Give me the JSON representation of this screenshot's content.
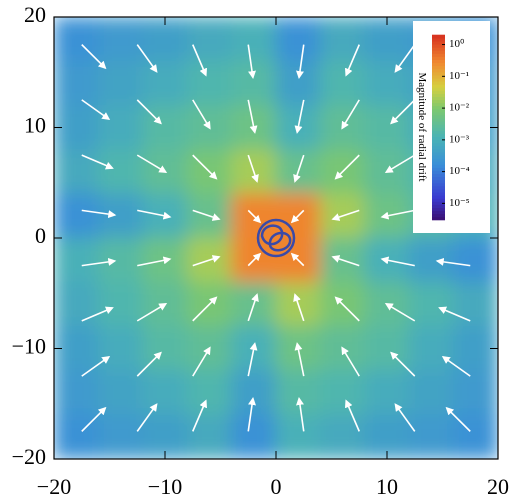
{
  "chart_data": {
    "type": "heatmap",
    "xlim": [
      -20,
      20
    ],
    "ylim": [
      -20,
      20
    ],
    "xticks": [
      {
        "value": -20,
        "label": "−20"
      },
      {
        "value": -10,
        "label": "−10"
      },
      0,
      10,
      20
    ],
    "yticks": [
      {
        "value": -20,
        "label": "−20"
      },
      {
        "value": -10,
        "label": "−10"
      },
      0,
      10,
      20
    ],
    "colorbar_label": "Magnitude of radial drift",
    "color_scale": "log",
    "clim": [
      3e-06,
      2
    ],
    "colorbar_ticks": [
      {
        "value": 1,
        "label": "10⁰"
      },
      {
        "value": 0.1,
        "label": "10⁻¹"
      },
      {
        "value": 0.01,
        "label": "10⁻²"
      },
      {
        "value": 0.001,
        "label": "10⁻³"
      },
      {
        "value": 0.0001,
        "label": "10⁻⁴"
      },
      {
        "value": 1e-05,
        "label": "10⁻⁵"
      }
    ],
    "heatmap": {
      "x": [
        -18,
        -14,
        -10,
        -6,
        -2,
        2,
        6,
        10,
        14,
        18
      ],
      "y": [
        18,
        14,
        10,
        6,
        2,
        -2,
        -6,
        -10,
        -14,
        -18
      ],
      "z": [
        [
          0.0002,
          0.0003,
          0.0004,
          0.0007,
          0.001,
          0.0002,
          0.0007,
          0.0004,
          0.0003,
          0.0002
        ],
        [
          0.0003,
          0.0005,
          0.0008,
          0.0015,
          0.002,
          0.0004,
          0.0015,
          0.0008,
          0.0005,
          0.0003
        ],
        [
          0.0004,
          0.0008,
          0.002,
          0.003,
          0.005,
          0.001,
          0.003,
          0.002,
          0.0008,
          0.0004
        ],
        [
          0.0007,
          0.0015,
          0.003,
          0.008,
          0.02,
          0.004,
          0.008,
          0.003,
          0.0015,
          0.0007
        ],
        [
          0.0002,
          0.0004,
          0.001,
          0.004,
          0.3,
          0.3,
          0.02,
          0.005,
          0.002,
          0.001
        ],
        [
          0.001,
          0.002,
          0.005,
          0.02,
          0.3,
          0.3,
          0.004,
          0.001,
          0.0004,
          0.0002
        ],
        [
          0.0007,
          0.0015,
          0.003,
          0.008,
          0.004,
          0.02,
          0.008,
          0.003,
          0.0015,
          0.0007
        ],
        [
          0.0004,
          0.0008,
          0.002,
          0.003,
          0.001,
          0.005,
          0.003,
          0.002,
          0.0008,
          0.0004
        ],
        [
          0.0003,
          0.0005,
          0.0008,
          0.0015,
          0.0004,
          0.002,
          0.0015,
          0.0008,
          0.0005,
          0.0003
        ],
        [
          0.0002,
          0.0003,
          0.0004,
          0.0007,
          0.0002,
          0.001,
          0.0007,
          0.0004,
          0.0003,
          0.0002
        ]
      ]
    },
    "vectors": {
      "color": "#ffffff",
      "x": [
        -17.5,
        -12.5,
        -7.5,
        -2.5,
        2.5,
        7.5,
        12.5,
        17.5
      ],
      "y": [
        17.5,
        12.5,
        7.5,
        2.5,
        -2.5,
        -7.5,
        -12.5,
        -17.5
      ],
      "u": [
        [
          2.12,
          1.74,
          1.18,
          0.42,
          -0.42,
          -1.18,
          -1.74,
          -2.12
        ],
        [
          2.44,
          2.12,
          1.54,
          0.59,
          -0.59,
          -1.54,
          -2.12,
          -2.44
        ],
        [
          2.76,
          2.57,
          2.12,
          0.79,
          -0.79,
          -2.12,
          -2.57,
          -2.76
        ],
        [
          2.97,
          2.94,
          2.37,
          1.06,
          -1.06,
          -2.37,
          -2.94,
          -2.97
        ],
        [
          2.97,
          2.94,
          2.37,
          1.06,
          -1.06,
          -2.37,
          -2.94,
          -2.97
        ],
        [
          2.76,
          2.57,
          2.12,
          0.79,
          -0.79,
          -2.12,
          -2.57,
          -2.76
        ],
        [
          2.44,
          2.12,
          1.54,
          0.59,
          -0.59,
          -1.54,
          -2.12,
          -2.44
        ],
        [
          2.12,
          1.74,
          1.18,
          0.42,
          -0.42,
          -1.18,
          -1.74,
          -2.12
        ]
      ],
      "v": [
        [
          -2.12,
          -2.44,
          -2.76,
          -2.97,
          -2.97,
          -2.76,
          -2.44,
          -2.12
        ],
        [
          -1.74,
          -2.12,
          -2.57,
          -2.94,
          -2.94,
          -2.57,
          -2.12,
          -1.74
        ],
        [
          -1.18,
          -1.54,
          -2.12,
          -2.37,
          -2.37,
          -2.12,
          -1.54,
          -1.18
        ],
        [
          -0.42,
          -0.59,
          -0.79,
          -1.06,
          -1.06,
          -0.79,
          -0.59,
          -0.42
        ],
        [
          0.42,
          0.59,
          0.79,
          1.06,
          1.06,
          0.79,
          0.59,
          0.42
        ],
        [
          1.18,
          1.54,
          2.12,
          2.37,
          2.37,
          2.12,
          1.54,
          1.18
        ],
        [
          1.74,
          2.12,
          2.57,
          2.94,
          2.94,
          2.57,
          2.12,
          1.74
        ],
        [
          2.12,
          2.44,
          2.76,
          2.97,
          2.97,
          2.76,
          2.44,
          2.12
        ]
      ]
    }
  }
}
